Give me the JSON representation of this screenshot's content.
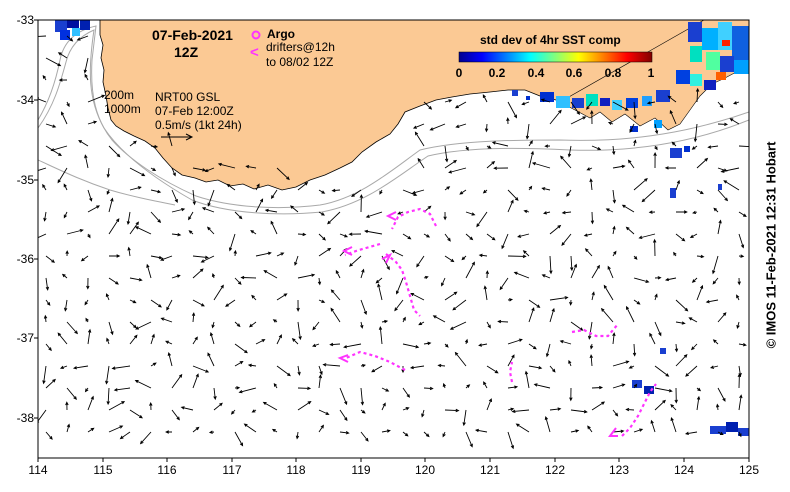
{
  "map": {
    "date_title": "07-Feb-2021",
    "hour_title": "12Z",
    "legend": {
      "argo_label": "Argo",
      "drifter_symbol": "<",
      "drifter_line1": "drifters@12h",
      "drifter_line2": "to 08/02 12Z"
    },
    "contour_labels": [
      "200m",
      "1000m"
    ],
    "product_line1": "NRT00 GSL",
    "product_line2": "07-Feb 12:00Z",
    "scale_label": "0.5m/s (1kt 24h)",
    "colorbar": {
      "title": "std dev of 4hr SST comp",
      "ticks": [
        "0",
        "0.2",
        "0.4",
        "0.6",
        "0.8",
        "1"
      ]
    },
    "x_ticks": [
      "114",
      "115",
      "116",
      "117",
      "118",
      "119",
      "120",
      "121",
      "122",
      "123",
      "124",
      "125"
    ],
    "y_ticks": [
      "-33",
      "-34",
      "-35",
      "-36",
      "-37",
      "-38"
    ],
    "credit": "© IMOS 11-Feb-2021 12:31 Hobart",
    "colors": {
      "land": "#fbc994",
      "drifter": "#ff33ff",
      "isobath": "#a9a9a9"
    }
  }
}
